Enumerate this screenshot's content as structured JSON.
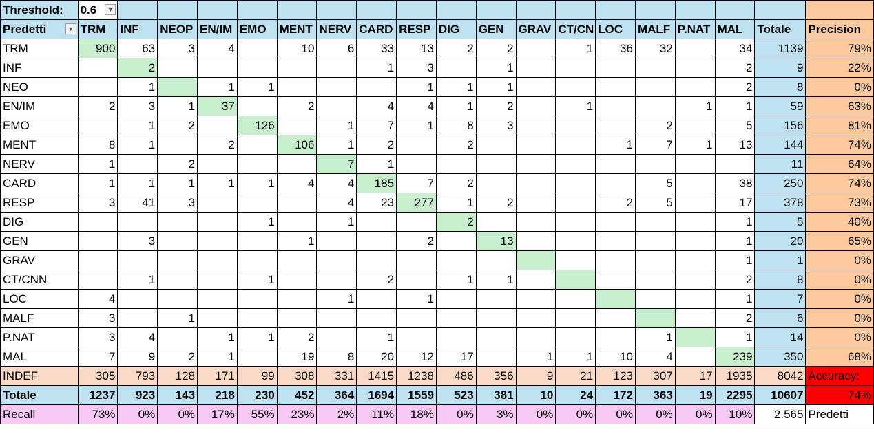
{
  "threshold": {
    "label": "Threshold:",
    "value": "0.6",
    "dropdown_icon": "chevron-down-icon"
  },
  "header": {
    "corner_label": "Predetti",
    "corner_dropdown_icon": "chevron-down-icon",
    "columns": [
      "TRM",
      "INF",
      "NEOP",
      "EN/IM",
      "EMO",
      "MENT",
      "NERV",
      "CARD",
      "RESP",
      "DIG",
      "GEN",
      "GRAV",
      "CT/CN",
      "LOC",
      "MALF",
      "P.NAT",
      "MAL"
    ],
    "total_label": "Totale",
    "precision_label": "Precision"
  },
  "rows": [
    {
      "label": "TRM",
      "cells": [
        "900",
        "63",
        "3",
        "4",
        "",
        "10",
        "6",
        "33",
        "13",
        "2",
        "2",
        "",
        "1",
        "36",
        "32",
        "",
        "34"
      ],
      "total": "1139",
      "precision": "79%"
    },
    {
      "label": "INF",
      "cells": [
        "",
        "2",
        "",
        "",
        "",
        "",
        "",
        "1",
        "3",
        "",
        "1",
        "",
        "",
        "",
        "",
        "",
        "2"
      ],
      "total": "9",
      "precision": "22%"
    },
    {
      "label": "NEO",
      "cells": [
        "",
        "1",
        "",
        "1",
        "1",
        "",
        "",
        "",
        "1",
        "1",
        "1",
        "",
        "",
        "",
        "",
        "",
        "2"
      ],
      "total": "8",
      "precision": "0%"
    },
    {
      "label": "EN/IM",
      "cells": [
        "2",
        "3",
        "1",
        "37",
        "",
        "2",
        "",
        "4",
        "4",
        "1",
        "2",
        "",
        "1",
        "",
        "",
        "1",
        "1"
      ],
      "total": "59",
      "precision": "63%"
    },
    {
      "label": "EMO",
      "cells": [
        "",
        "1",
        "2",
        "",
        "126",
        "",
        "1",
        "7",
        "1",
        "8",
        "3",
        "",
        "",
        "",
        "2",
        "",
        "5"
      ],
      "total": "156",
      "precision": "81%"
    },
    {
      "label": "MENT",
      "cells": [
        "8",
        "1",
        "",
        "2",
        "",
        "106",
        "1",
        "2",
        "",
        "2",
        "",
        "",
        "",
        "1",
        "7",
        "1",
        "13"
      ],
      "total": "144",
      "precision": "74%"
    },
    {
      "label": "NERV",
      "cells": [
        "1",
        "",
        "2",
        "",
        "",
        "",
        "7",
        "1",
        "",
        "",
        "",
        "",
        "",
        "",
        "",
        "",
        ""
      ],
      "total": "11",
      "precision": "64%"
    },
    {
      "label": "CARD",
      "cells": [
        "1",
        "1",
        "1",
        "1",
        "1",
        "4",
        "4",
        "185",
        "7",
        "2",
        "",
        "",
        "",
        "",
        "5",
        "",
        "38"
      ],
      "total": "250",
      "precision": "74%"
    },
    {
      "label": "RESP",
      "cells": [
        "3",
        "41",
        "3",
        "",
        "",
        "",
        "4",
        "23",
        "277",
        "1",
        "2",
        "",
        "",
        "2",
        "5",
        "",
        "17"
      ],
      "total": "378",
      "precision": "73%"
    },
    {
      "label": "DIG",
      "cells": [
        "",
        "",
        "",
        "",
        "1",
        "",
        "1",
        "",
        "",
        "2",
        "",
        "",
        "",
        "",
        "",
        "",
        "1"
      ],
      "total": "5",
      "precision": "40%"
    },
    {
      "label": "GEN",
      "cells": [
        "",
        "3",
        "",
        "",
        "",
        "1",
        "",
        "",
        "2",
        "",
        "13",
        "",
        "",
        "",
        "",
        "",
        "1"
      ],
      "total": "20",
      "precision": "65%"
    },
    {
      "label": "GRAV",
      "cells": [
        "",
        "",
        "",
        "",
        "",
        "",
        "",
        "",
        "",
        "",
        "",
        "",
        "",
        "",
        "",
        "",
        "1"
      ],
      "total": "1",
      "precision": "0%"
    },
    {
      "label": "CT/CNN",
      "cells": [
        "",
        "1",
        "",
        "",
        "1",
        "",
        "",
        "2",
        "",
        "1",
        "1",
        "",
        "",
        "",
        "",
        "",
        "2"
      ],
      "total": "8",
      "precision": "0%"
    },
    {
      "label": "LOC",
      "cells": [
        "4",
        "",
        "",
        "",
        "",
        "",
        "1",
        "",
        "1",
        "",
        "",
        "",
        "",
        "",
        "",
        "",
        "1"
      ],
      "total": "7",
      "precision": "0%"
    },
    {
      "label": "MALF",
      "cells": [
        "3",
        "",
        "1",
        "",
        "",
        "",
        "",
        "",
        "",
        "",
        "",
        "",
        "",
        "",
        "",
        "",
        "2"
      ],
      "total": "6",
      "precision": "0%"
    },
    {
      "label": "P.NAT",
      "cells": [
        "3",
        "4",
        "",
        "1",
        "1",
        "2",
        "",
        "1",
        "",
        "",
        "",
        "",
        "",
        "",
        "1",
        "",
        "1"
      ],
      "total": "14",
      "precision": "0%"
    },
    {
      "label": "MAL",
      "cells": [
        "7",
        "9",
        "2",
        "1",
        "",
        "19",
        "8",
        "20",
        "12",
        "17",
        "",
        "1",
        "1",
        "10",
        "4",
        "",
        "239"
      ],
      "total": "350",
      "precision": "68%"
    }
  ],
  "indef": {
    "label": "INDEF",
    "cells": [
      "305",
      "793",
      "128",
      "171",
      "99",
      "308",
      "331",
      "1415",
      "1238",
      "486",
      "356",
      "9",
      "21",
      "123",
      "307",
      "17",
      "1935"
    ],
    "total": "8042",
    "extra": "Accuracy:"
  },
  "totale": {
    "label": "Totale",
    "cells": [
      "1237",
      "923",
      "143",
      "218",
      "230",
      "452",
      "364",
      "1694",
      "1559",
      "523",
      "381",
      "10",
      "24",
      "172",
      "363",
      "19",
      "2295"
    ],
    "total": "10607",
    "extra": "74%"
  },
  "recall": {
    "label": "Recall",
    "cells": [
      "73%",
      "0%",
      "0%",
      "17%",
      "55%",
      "23%",
      "2%",
      "11%",
      "18%",
      "0%",
      "3%",
      "0%",
      "0%",
      "0%",
      "0%",
      "0%",
      "10%"
    ],
    "total": "2.565",
    "extra": "Predetti"
  },
  "colors": {
    "header_blue": "#bfe2f3",
    "precision_orange": "#fbc99d",
    "diagonal_green": "#c7efce",
    "indef_row": "#fad9c7",
    "recall_row": "#f7c8f3",
    "accuracy_red": "#ff0000"
  }
}
